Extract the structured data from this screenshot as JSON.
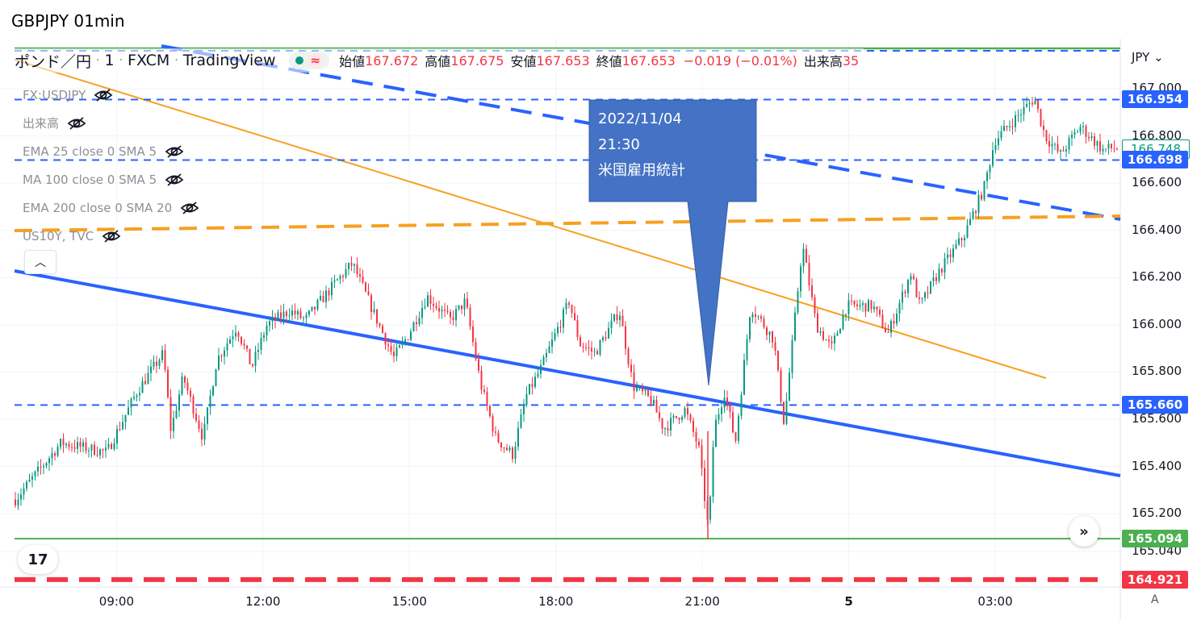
{
  "window_title": "GBPJPY 01min",
  "header": {
    "symbol": "ポンド／円",
    "interval": "1",
    "broker": "FXCM",
    "platform": "TradingView",
    "ohlc": [
      {
        "label": "始値",
        "value": "167.672"
      },
      {
        "label": "高値",
        "value": "167.675"
      },
      {
        "label": "安値",
        "value": "167.653"
      },
      {
        "label": "終値",
        "value": "167.653"
      }
    ],
    "change": "−0.019 (−0.01%)",
    "volume_label": "出来高",
    "volume_value": "35"
  },
  "indicators": [
    {
      "label": "FX:USDJPY"
    },
    {
      "label": "出来高"
    },
    {
      "label": "EMA 25 close 0 SMA 5"
    },
    {
      "label": "MA 100 close 0 SMA 5"
    },
    {
      "label": "EMA 200 close 0 SMA 20"
    },
    {
      "label": "US10Y, TVC"
    }
  ],
  "callout": {
    "line1": "2022/11/04",
    "line2": "21:30",
    "line3": "米国雇用統計"
  },
  "axis": {
    "currency": "JPY",
    "auto_label": "A"
  },
  "colors": {
    "up": "#089981",
    "down": "#f23645",
    "blue": "#2962ff",
    "orange": "#f7a021",
    "green": "#4caf50",
    "red": "#f23645",
    "callout": "#4472c4"
  },
  "chart_data": {
    "type": "candlestick",
    "title": "GBPJPY 01min",
    "y_range": [
      165.0,
      167.12
    ],
    "y_ticks": [
      "167.000",
      "166.800",
      "166.600",
      "166.400",
      "166.200",
      "166.000",
      "165.800",
      "165.600",
      "165.400",
      "165.200",
      "165.040"
    ],
    "x_ticks": [
      "09:00",
      "12:00",
      "15:00",
      "18:00",
      "21:00",
      "5",
      "03:00"
    ],
    "price_tags": [
      {
        "value": "166.954",
        "style": "blue"
      },
      {
        "value": "166.748",
        "style": "outline"
      },
      {
        "value": "166.698",
        "style": "blue"
      },
      {
        "value": "165.660",
        "style": "blue"
      },
      {
        "value": "165.094",
        "style": "green"
      },
      {
        "value": "164.921",
        "style": "red"
      }
    ],
    "price_path": [
      [
        0,
        165.26
      ],
      [
        3,
        165.5
      ],
      [
        6,
        165.46
      ],
      [
        8,
        165.72
      ],
      [
        9.7,
        165.88
      ],
      [
        10.2,
        165.55
      ],
      [
        11,
        165.78
      ],
      [
        12.3,
        165.52
      ],
      [
        13.2,
        165.85
      ],
      [
        14.5,
        165.99
      ],
      [
        15.5,
        165.82
      ],
      [
        16.5,
        166.0
      ],
      [
        18,
        166.06
      ],
      [
        19,
        166.02
      ],
      [
        20,
        166.1
      ],
      [
        21,
        166.18
      ],
      [
        22.1,
        166.26
      ],
      [
        23.5,
        166.05
      ],
      [
        24.8,
        165.86
      ],
      [
        25.7,
        165.95
      ],
      [
        27,
        166.12
      ],
      [
        28.5,
        166.02
      ],
      [
        29.5,
        166.1
      ],
      [
        30.5,
        165.75
      ],
      [
        31.5,
        165.52
      ],
      [
        32.6,
        165.45
      ],
      [
        33.5,
        165.7
      ],
      [
        34.5,
        165.82
      ],
      [
        36.3,
        166.1
      ],
      [
        37,
        165.92
      ],
      [
        38,
        165.88
      ],
      [
        39.6,
        166.06
      ],
      [
        40.5,
        165.74
      ],
      [
        41.7,
        165.68
      ],
      [
        42.5,
        165.56
      ],
      [
        43.9,
        165.64
      ],
      [
        44.8,
        165.48
      ],
      [
        45.45,
        165.12
      ],
      [
        45.8,
        165.56
      ],
      [
        46.5,
        165.72
      ],
      [
        47.2,
        165.5
      ],
      [
        48.2,
        166.08
      ],
      [
        49.7,
        165.94
      ],
      [
        50.4,
        165.58
      ],
      [
        51.6,
        166.34
      ],
      [
        52.5,
        166.0
      ],
      [
        53.5,
        165.9
      ],
      [
        54.5,
        166.08
      ],
      [
        56.2,
        166.08
      ],
      [
        57.2,
        165.96
      ],
      [
        58.7,
        166.22
      ],
      [
        59.3,
        166.08
      ],
      [
        60.5,
        166.22
      ],
      [
        62.2,
        166.38
      ],
      [
        63.5,
        166.58
      ],
      [
        64.2,
        166.78
      ],
      [
        66.8,
        166.96
      ],
      [
        67.5,
        166.8
      ],
      [
        68.5,
        166.72
      ],
      [
        69.8,
        166.84
      ],
      [
        71.3,
        166.74
      ],
      [
        71.8,
        166.748
      ]
    ],
    "series": [
      {
        "name": "horizontal",
        "value": 166.954,
        "style": "blue-dashed"
      },
      {
        "name": "horizontal",
        "value": 166.698,
        "style": "blue-dashed"
      },
      {
        "name": "horizontal",
        "value": 165.66,
        "style": "blue-dashed"
      },
      {
        "name": "horizontal",
        "value": 165.094,
        "style": "green-solid"
      },
      {
        "name": "horizontal",
        "value": 164.921,
        "style": "red-dashed"
      }
    ]
  }
}
